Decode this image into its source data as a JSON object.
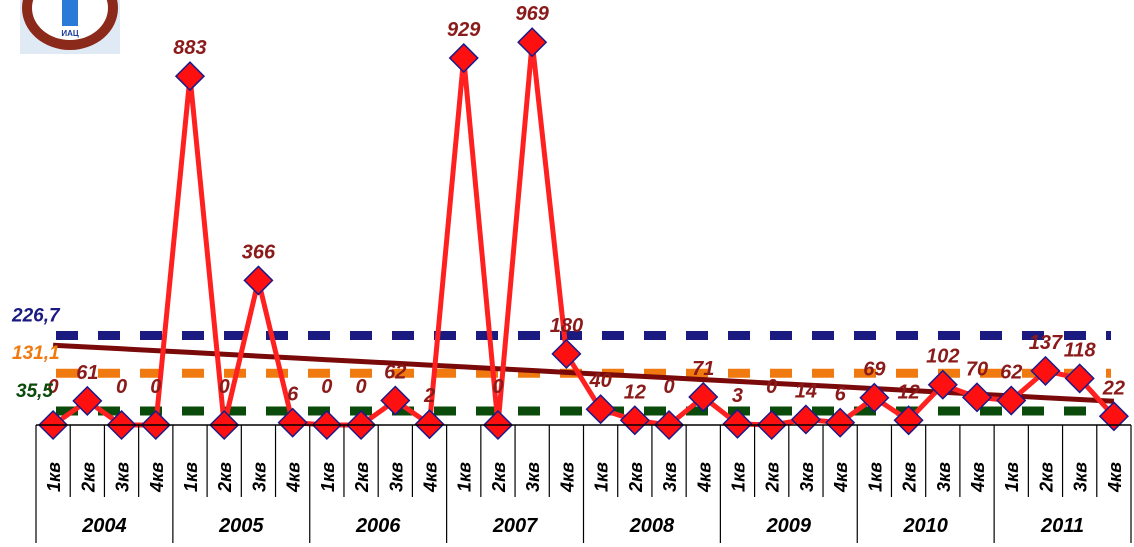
{
  "logo": {
    "text": "ИАЦ",
    "colors": {
      "ring": "#8b2a1a",
      "cross": "#2a7ad8",
      "bg": "#dfeaf5"
    }
  },
  "chart_data": {
    "type": "line",
    "years": [
      "2004",
      "2005",
      "2006",
      "2007",
      "2008",
      "2009",
      "2010",
      "2011"
    ],
    "quarters": [
      "1кв",
      "2кв",
      "3кв",
      "4кв"
    ],
    "categories": [
      "2004 1кв",
      "2004 2кв",
      "2004 3кв",
      "2004 4кв",
      "2005 1кв",
      "2005 2кв",
      "2005 3кв",
      "2005 4кв",
      "2006 1кв",
      "2006 2кв",
      "2006 3кв",
      "2006 4кв",
      "2007 1кв",
      "2007 2кв",
      "2007 3кв",
      "2007 4кв",
      "2008 1кв",
      "2008 2кв",
      "2008 3кв",
      "2008 4кв",
      "2009 1кв",
      "2009 2кв",
      "2009 3кв",
      "2009 4кв",
      "2010 1кв",
      "2010 2кв",
      "2010 3кв",
      "2010 4кв",
      "2011 1кв",
      "2011 2кв",
      "2011 3кв",
      "2011 4кв"
    ],
    "series": [
      {
        "values": [
          0,
          61,
          0,
          0,
          883,
          0,
          366,
          6,
          0,
          0,
          62,
          2,
          929,
          0,
          969,
          180,
          40,
          12,
          0,
          71,
          3,
          0,
          14,
          6,
          69,
          12,
          102,
          70,
          62,
          137,
          118,
          22
        ],
        "labels": [
          "0",
          "61",
          "0",
          "0",
          "883",
          "0",
          "366",
          "6",
          "0",
          "0",
          "62",
          "2",
          "929",
          "0",
          "969",
          "180",
          "40",
          "12",
          "0",
          "71",
          "3",
          "0",
          "14",
          "6",
          "69",
          "12",
          "102",
          "70",
          "62",
          "137",
          "118",
          "22"
        ],
        "color": "#ff2020",
        "marker_color": "#ff1010",
        "marker_edge": "#1a1a8a"
      }
    ],
    "trend": {
      "start": 202,
      "end": 60,
      "color": "#7a0a0a"
    },
    "reference_lines": [
      {
        "value": 226.7,
        "label": "226,7",
        "color": "#1a1a80"
      },
      {
        "value": 131.1,
        "label": "131,1",
        "color": "#f07a10"
      },
      {
        "value": 35.5,
        "label": "35,5",
        "color": "#0a4a0a"
      }
    ],
    "ylim": [
      0,
      1000
    ],
    "grid": false,
    "title": "",
    "xlabel": "",
    "ylabel": ""
  }
}
